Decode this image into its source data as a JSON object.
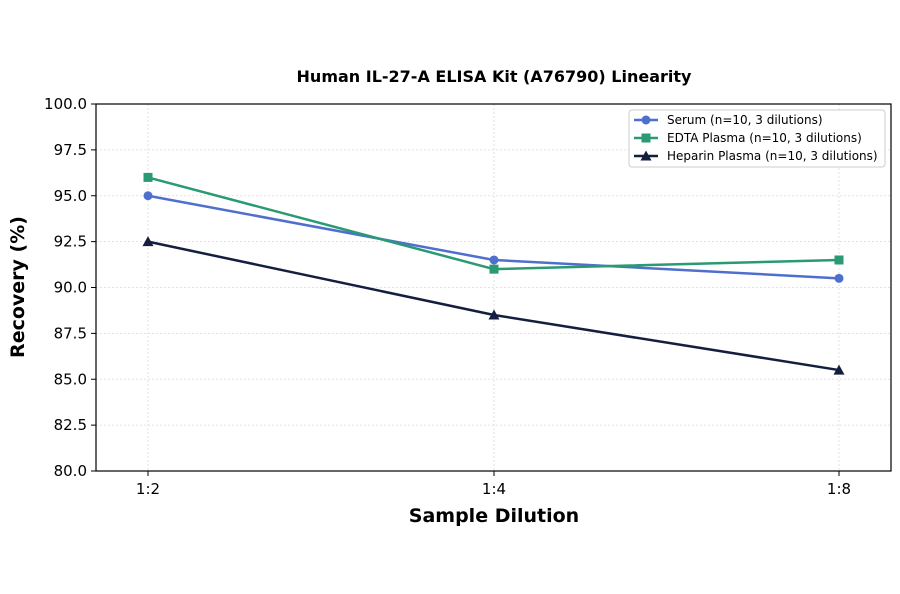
{
  "chart_data": {
    "type": "line",
    "title": "Human IL-27-A ELISA Kit (A76790) Linearity",
    "xlabel": "Sample Dilution",
    "ylabel": "Recovery (%)",
    "categories": [
      "1:2",
      "1:4",
      "1:8"
    ],
    "ylim": [
      80.0,
      100.0
    ],
    "yticks": [
      "80.0",
      "82.5",
      "85.0",
      "87.5",
      "90.0",
      "92.5",
      "95.0",
      "97.5",
      "100.0"
    ],
    "grid": true,
    "legend_position": "top-right",
    "series": [
      {
        "name": "Serum (n=10, 3 dilutions)",
        "values": [
          95.0,
          91.5,
          90.5
        ],
        "color": "#4f6fcf",
        "marker": "circle"
      },
      {
        "name": "EDTA Plasma (n=10, 3 dilutions)",
        "values": [
          96.0,
          91.0,
          91.5
        ],
        "color": "#2a9a73",
        "marker": "square"
      },
      {
        "name": "Heparin Plasma (n=10, 3 dilutions)",
        "values": [
          92.5,
          88.5,
          85.5
        ],
        "color": "#141e3f",
        "marker": "triangle"
      }
    ]
  }
}
